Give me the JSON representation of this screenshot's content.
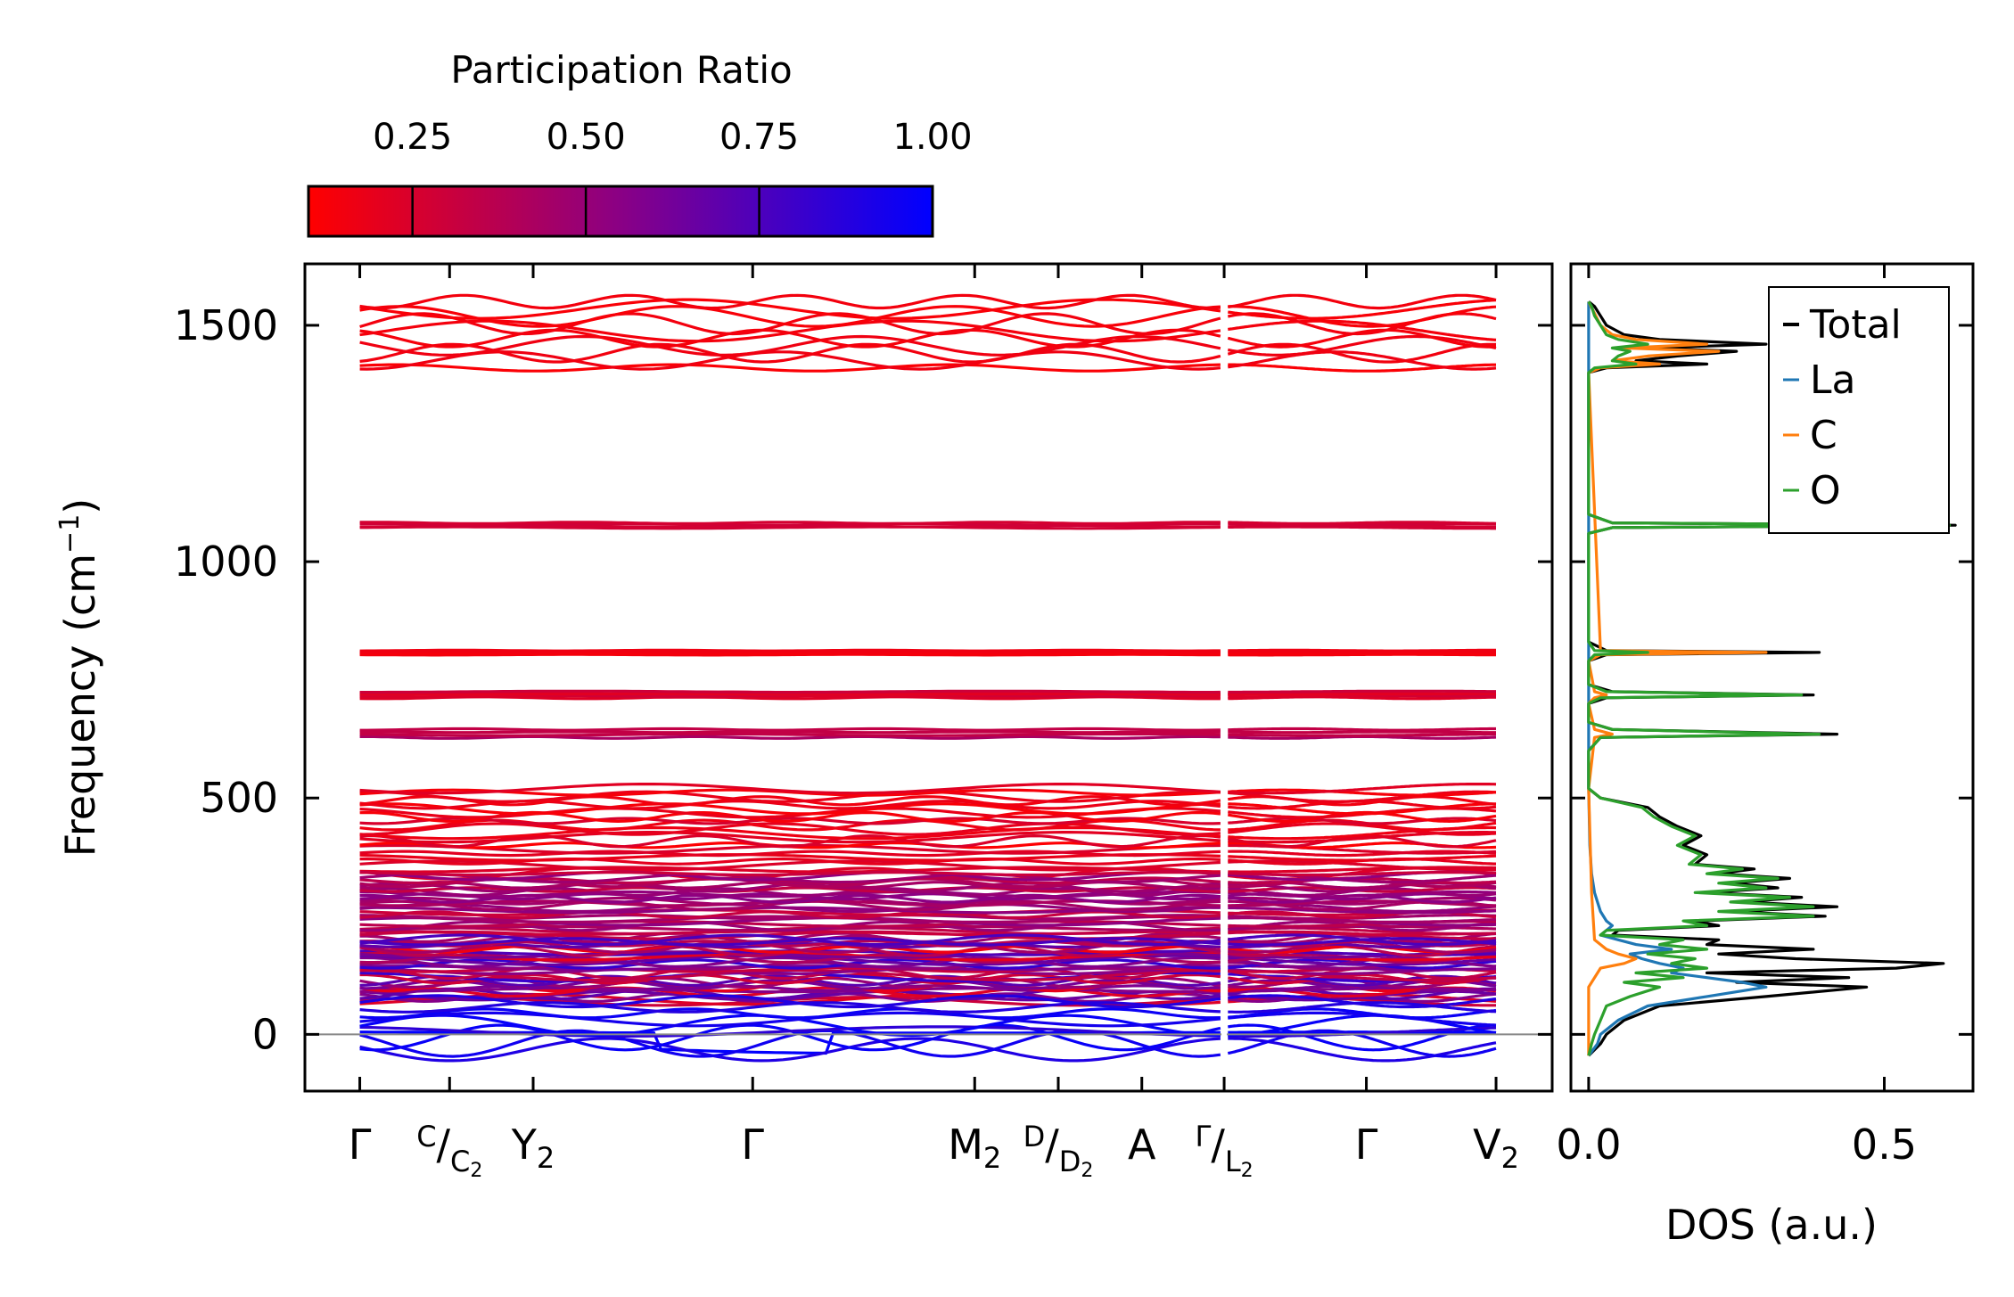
{
  "colorbar": {
    "title": "Participation Ratio",
    "ticks": [
      0.25,
      0.5,
      0.75,
      1.0
    ],
    "tick_labels": [
      "0.25",
      "0.50",
      "0.75",
      "1.00"
    ],
    "range": [
      0.1,
      1.0
    ],
    "color_low": "#ff0000",
    "color_high": "#0000ff"
  },
  "chart_data": [
    {
      "type": "line",
      "name": "phonon-band-structure",
      "ylabel": "Frequency (cm",
      "ylabel_sup": "−1",
      "ylabel_close": ")",
      "ylim": [
        -120,
        1630
      ],
      "yticks": [
        0,
        500,
        1000,
        1500
      ],
      "ytick_labels": [
        "0",
        "500",
        "1000",
        "1500"
      ],
      "xlim": [
        0,
        1
      ],
      "kpath_ticks": [
        0.044,
        0.116,
        0.183,
        0.359,
        0.537,
        0.604,
        0.671,
        0.737,
        0.851,
        0.955
      ],
      "segment_break": 0.737,
      "kpath_labels": [
        {
          "main": "Γ",
          "pos": 0.044
        },
        {
          "sup": "C",
          "slash": "/",
          "sub_main": "C",
          "sub_sub": "2",
          "pos": 0.116
        },
        {
          "main": "Y",
          "sub": "2",
          "pos": 0.183
        },
        {
          "main": "Γ",
          "pos": 0.359
        },
        {
          "main": "M",
          "sub": "2",
          "pos": 0.537
        },
        {
          "sup": "D",
          "slash": "/",
          "sub_main": "D",
          "sub_sub": "2",
          "pos": 0.604
        },
        {
          "main": "A",
          "pos": 0.671
        },
        {
          "sup": "Γ",
          "slash": "/",
          "sub_main": "L",
          "sub_sub": "2",
          "pos": 0.737
        },
        {
          "main": "Γ",
          "pos": 0.851
        },
        {
          "main": "V",
          "sub": "2",
          "pos": 0.955
        }
      ],
      "zero_line": 0,
      "band_groups": [
        {
          "range": [
            1410,
            1550
          ],
          "count": 10,
          "pr": [
            0.1,
            0.18
          ],
          "dispersion": 45
        },
        {
          "range": [
            1072,
            1082
          ],
          "count": 4,
          "pr": [
            0.25,
            0.35
          ],
          "dispersion": 4
        },
        {
          "range": [
            803,
            812
          ],
          "count": 4,
          "pr": [
            0.12,
            0.18
          ],
          "dispersion": 2
        },
        {
          "range": [
            712,
            725
          ],
          "count": 6,
          "pr": [
            0.2,
            0.3
          ],
          "dispersion": 4
        },
        {
          "range": [
            628,
            645
          ],
          "count": 4,
          "pr": [
            0.3,
            0.45
          ],
          "dispersion": 4
        },
        {
          "range": [
            340,
            520
          ],
          "count": 22,
          "pr": [
            0.1,
            0.25
          ],
          "dispersion": 25
        },
        {
          "range": [
            200,
            340
          ],
          "count": 30,
          "pr": [
            0.3,
            0.55
          ],
          "dispersion": 18
        },
        {
          "range": [
            70,
            200
          ],
          "count": 34,
          "pr": [
            0.15,
            0.85
          ],
          "dispersion": 22
        },
        {
          "range": [
            -45,
            70
          ],
          "count": 10,
          "pr": [
            0.85,
            1.0
          ],
          "dispersion": 30
        }
      ]
    },
    {
      "type": "line",
      "name": "density-of-states",
      "xlabel": "DOS (a.u.)",
      "xlim": [
        -0.03,
        0.65
      ],
      "xticks": [
        0.0,
        0.5
      ],
      "xtick_labels": [
        "0.0",
        "0.5"
      ],
      "ylim": [
        -120,
        1630
      ],
      "legend": {
        "placement": "top-right",
        "entries": [
          "Total",
          "La",
          "C",
          "O"
        ]
      },
      "series": [
        {
          "name": "Total",
          "color": "#000000",
          "freq": [
            -45,
            -20,
            0,
            30,
            60,
            80,
            100,
            110,
            120,
            130,
            140,
            150,
            160,
            170,
            180,
            190,
            200,
            210,
            220,
            230,
            240,
            250,
            260,
            270,
            280,
            290,
            300,
            310,
            320,
            330,
            340,
            350,
            360,
            380,
            400,
            420,
            440,
            460,
            480,
            500,
            520,
            600,
            628,
            635,
            645,
            660,
            700,
            712,
            718,
            725,
            740,
            790,
            803,
            808,
            812,
            830,
            1060,
            1072,
            1077,
            1082,
            1100,
            1400,
            1410,
            1418,
            1425,
            1435,
            1445,
            1452,
            1460,
            1470,
            1480,
            1500,
            1520,
            1540,
            1550
          ],
          "dos": [
            0,
            0.02,
            0.03,
            0.06,
            0.12,
            0.3,
            0.47,
            0.25,
            0.44,
            0.2,
            0.52,
            0.6,
            0.35,
            0.22,
            0.38,
            0.2,
            0.22,
            0.04,
            0.05,
            0.22,
            0.18,
            0.4,
            0.24,
            0.42,
            0.26,
            0.36,
            0.2,
            0.32,
            0.24,
            0.34,
            0.22,
            0.28,
            0.18,
            0.2,
            0.16,
            0.19,
            0.15,
            0.12,
            0.1,
            0.02,
            0,
            0,
            0.02,
            0.42,
            0.04,
            0,
            0,
            0.03,
            0.38,
            0.04,
            0,
            0,
            0.03,
            0.39,
            0.03,
            0,
            0,
            0.04,
            0.62,
            0.04,
            0,
            0,
            0.03,
            0.2,
            0.08,
            0.15,
            0.25,
            0.1,
            0.3,
            0.12,
            0.06,
            0.03,
            0.02,
            0.01,
            0
          ]
        },
        {
          "name": "La",
          "color": "#1f77b4",
          "freq": [
            -45,
            -20,
            0,
            30,
            60,
            80,
            100,
            110,
            120,
            130,
            140,
            150,
            160,
            170,
            180,
            190,
            200,
            210,
            220,
            230,
            240,
            260,
            280,
            300,
            340,
            400,
            520,
            1550
          ],
          "dos": [
            0,
            0.015,
            0.02,
            0.05,
            0.1,
            0.2,
            0.3,
            0.26,
            0.2,
            0.14,
            0.16,
            0.12,
            0.09,
            0.07,
            0.14,
            0.08,
            0.05,
            0.02,
            0.03,
            0.04,
            0.03,
            0.02,
            0.015,
            0.01,
            0.005,
            0.002,
            0,
            0
          ]
        },
        {
          "name": "C",
          "color": "#ff7f0e",
          "freq": [
            -45,
            100,
            140,
            150,
            160,
            170,
            180,
            200,
            300,
            520,
            628,
            635,
            645,
            700,
            712,
            718,
            725,
            790,
            803,
            808,
            812,
            1400,
            1410,
            1418,
            1425,
            1435,
            1445,
            1452,
            1460,
            1470,
            1480,
            1500,
            1550
          ],
          "dos": [
            0,
            0,
            0.02,
            0.06,
            0.08,
            0.05,
            0.03,
            0.01,
            0.005,
            0,
            0.01,
            0.04,
            0.01,
            0,
            0.01,
            0.03,
            0.01,
            0,
            0.02,
            0.3,
            0.02,
            0,
            0.02,
            0.12,
            0.04,
            0.1,
            0.22,
            0.06,
            0.2,
            0.08,
            0.04,
            0.02,
            0
          ]
        },
        {
          "name": "O",
          "color": "#2ca02c",
          "freq": [
            -45,
            -20,
            0,
            30,
            60,
            80,
            100,
            110,
            120,
            130,
            140,
            150,
            160,
            170,
            180,
            190,
            200,
            210,
            220,
            230,
            240,
            250,
            260,
            270,
            280,
            290,
            300,
            310,
            320,
            330,
            340,
            350,
            360,
            380,
            400,
            420,
            440,
            460,
            480,
            500,
            520,
            600,
            628,
            635,
            645,
            660,
            700,
            712,
            718,
            725,
            740,
            790,
            803,
            808,
            812,
            830,
            1060,
            1072,
            1077,
            1082,
            1100,
            1400,
            1410,
            1418,
            1425,
            1435,
            1445,
            1452,
            1460,
            1470,
            1480,
            1500,
            1520,
            1540,
            1550
          ],
          "dos": [
            0,
            0.005,
            0.01,
            0.02,
            0.03,
            0.07,
            0.12,
            0.06,
            0.16,
            0.08,
            0.2,
            0.14,
            0.18,
            0.1,
            0.2,
            0.12,
            0.16,
            0.02,
            0.03,
            0.2,
            0.16,
            0.38,
            0.22,
            0.38,
            0.24,
            0.34,
            0.18,
            0.3,
            0.22,
            0.32,
            0.2,
            0.26,
            0.17,
            0.19,
            0.15,
            0.18,
            0.14,
            0.11,
            0.09,
            0.02,
            0,
            0,
            0.02,
            0.39,
            0.04,
            0,
            0,
            0.02,
            0.36,
            0.03,
            0,
            0,
            0.01,
            0.1,
            0.01,
            0,
            0,
            0.04,
            0.61,
            0.04,
            0,
            0,
            0.01,
            0.08,
            0.04,
            0.05,
            0.07,
            0.04,
            0.1,
            0.05,
            0.03,
            0.02,
            0.01,
            0.005,
            0
          ]
        }
      ]
    }
  ]
}
